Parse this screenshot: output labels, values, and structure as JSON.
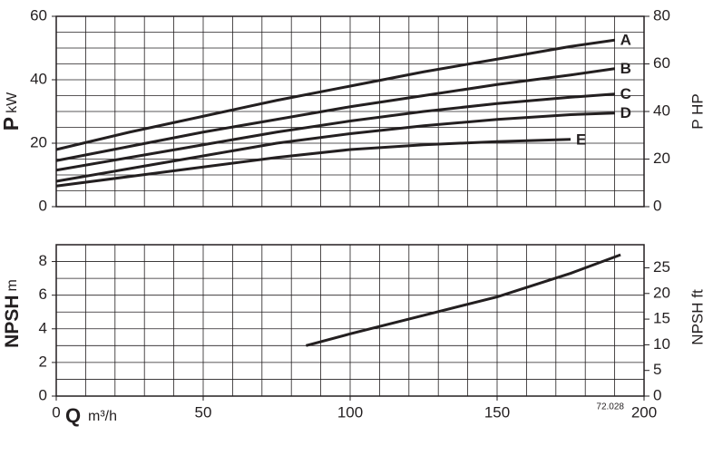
{
  "chart_data": [
    {
      "type": "line",
      "ylabel_symbol": "P",
      "ylabel_unit": "kW",
      "y2label": "P HP",
      "xlim": [
        0,
        200
      ],
      "x": [
        0,
        25,
        50,
        75,
        100,
        125,
        150,
        175,
        190
      ],
      "series": [
        {
          "name": "A",
          "color": "#231f20",
          "values": [
            18,
            23.5,
            28.5,
            33.5,
            38,
            42.5,
            46.5,
            50.5,
            52.5
          ]
        },
        {
          "name": "B",
          "color": "#231f20",
          "values": [
            14.5,
            19,
            23.5,
            27.5,
            31.5,
            35,
            38.5,
            41.5,
            43.5
          ]
        },
        {
          "name": "C",
          "color": "#231f20",
          "values": [
            11.5,
            15.5,
            19.5,
            23.5,
            27,
            30,
            32.5,
            34.5,
            35.5
          ]
        },
        {
          "name": "D",
          "color": "#231f20",
          "values": [
            8,
            12,
            16,
            20,
            23,
            25.5,
            27.5,
            29,
            29.5
          ]
        },
        {
          "name": "E",
          "color": "#231f20",
          "values": [
            6.5,
            9.5,
            12.5,
            15.5,
            18,
            19.5,
            20.5,
            21.2,
            null
          ]
        }
      ],
      "ylim": [
        0,
        60
      ],
      "yticks": [
        0,
        20,
        40,
        60
      ],
      "y2lim": [
        0,
        80
      ],
      "y2ticks": [
        0,
        20,
        40,
        60,
        80
      ],
      "grid": true
    },
    {
      "type": "line",
      "ylabel_symbol": "NPSH",
      "ylabel_unit": "m",
      "y2label": "NPSH ft",
      "xlabel_symbol": "Q",
      "xlabel_unit": "m³/h",
      "annotation": "72.028",
      "xlim": [
        0,
        200
      ],
      "xticks": [
        0,
        50,
        100,
        150,
        200
      ],
      "x": [
        85,
        100,
        125,
        150,
        175,
        192
      ],
      "series": [
        {
          "color": "#231f20",
          "values": [
            3.0,
            3.7,
            4.8,
            5.9,
            7.3,
            8.4
          ]
        }
      ],
      "ylim": [
        0,
        9
      ],
      "yticks": [
        0,
        2,
        4,
        6,
        8
      ],
      "y2lim": [
        0,
        29.5
      ],
      "y2ticks": [
        0,
        5,
        10,
        15,
        20,
        25
      ],
      "grid": true
    }
  ]
}
